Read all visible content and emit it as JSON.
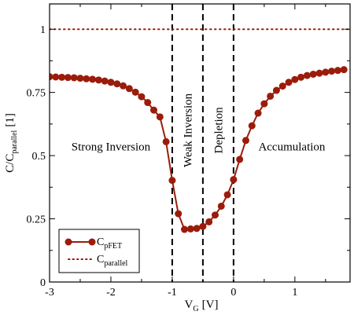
{
  "chart_data": {
    "type": "line",
    "xlabel": "V",
    "xlabel_sub": "G",
    "xlabel_unit": "[V]",
    "ylabel": "C/C",
    "ylabel_sub": "parallel",
    "ylabel_unit": "[1]",
    "xlim": [
      -3,
      1.9
    ],
    "ylim": [
      0,
      1.1
    ],
    "x_ticks": [
      -3,
      -2,
      -1,
      0,
      1
    ],
    "x_tick_labels": [
      "-3",
      "-2",
      "-1",
      "0",
      "1"
    ],
    "y_ticks": [
      0,
      0.25,
      0.5,
      0.75,
      1
    ],
    "y_tick_labels": [
      "0",
      "0.25",
      "0.5",
      "0.75",
      "1"
    ],
    "grid": false,
    "legend_position": "bottom-left",
    "series": [
      {
        "name": "C",
        "name_sub": "pFET",
        "style": "line-markers",
        "color": "#9b1c0a",
        "x": [
          -3.0,
          -2.9,
          -2.8,
          -2.7,
          -2.6,
          -2.5,
          -2.4,
          -2.3,
          -2.2,
          -2.1,
          -2.0,
          -1.9,
          -1.8,
          -1.7,
          -1.6,
          -1.5,
          -1.4,
          -1.3,
          -1.2,
          -1.1,
          -1.0,
          -0.9,
          -0.8,
          -0.7,
          -0.6,
          -0.5,
          -0.4,
          -0.3,
          -0.2,
          -0.1,
          0.0,
          0.1,
          0.2,
          0.3,
          0.4,
          0.5,
          0.6,
          0.7,
          0.8,
          0.9,
          1.0,
          1.1,
          1.2,
          1.3,
          1.4,
          1.5,
          1.6,
          1.7,
          1.8
        ],
        "y": [
          0.812,
          0.811,
          0.81,
          0.809,
          0.808,
          0.806,
          0.804,
          0.802,
          0.799,
          0.795,
          0.79,
          0.784,
          0.776,
          0.765,
          0.751,
          0.733,
          0.71,
          0.68,
          0.653,
          0.555,
          0.402,
          0.27,
          0.208,
          0.21,
          0.212,
          0.22,
          0.238,
          0.265,
          0.3,
          0.345,
          0.405,
          0.485,
          0.56,
          0.618,
          0.668,
          0.705,
          0.735,
          0.758,
          0.775,
          0.79,
          0.801,
          0.81,
          0.817,
          0.822,
          0.826,
          0.83,
          0.834,
          0.837,
          0.84
        ]
      },
      {
        "name": "C",
        "name_sub": "parallel",
        "style": "dotted",
        "color": "#9b1c0a",
        "x": [
          -3,
          1.9
        ],
        "y": [
          1,
          1
        ]
      }
    ],
    "vlines": [
      -1.0,
      -0.5,
      0.0
    ],
    "regions": [
      {
        "label": "Strong Inversion",
        "x": -2.0,
        "y": 0.52,
        "rotate": false
      },
      {
        "label": "Weak Inversion",
        "x": -0.75,
        "y": 0.6,
        "rotate": true
      },
      {
        "label": "Depletion",
        "x": -0.25,
        "y": 0.6,
        "rotate": true
      },
      {
        "label": "Accumulation",
        "x": 0.95,
        "y": 0.52,
        "rotate": false
      }
    ]
  }
}
